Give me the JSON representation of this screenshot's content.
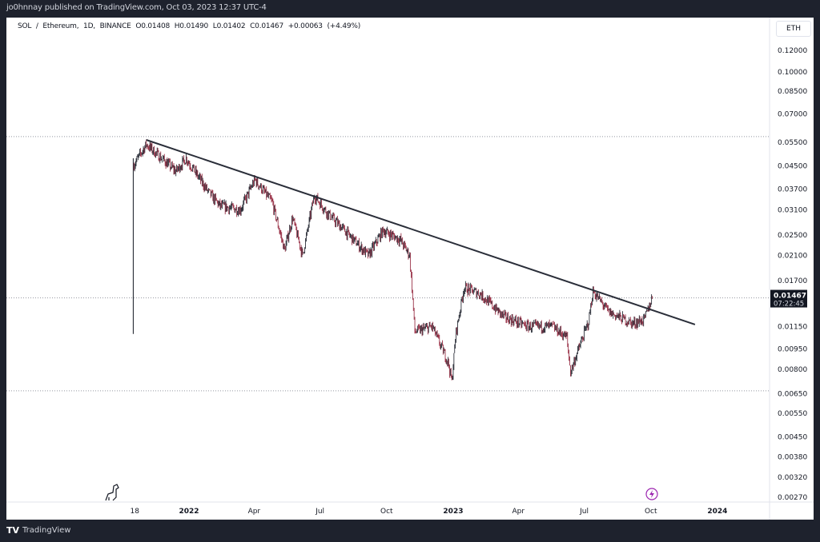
{
  "header": {
    "published": "jo0hnnay published on TradingView.com, Oct 03, 2023 12:37 UTC-4"
  },
  "legend": {
    "symbol": "SOL / Ethereum, 1D, BINANCE",
    "open": "O0.01408",
    "high": "H0.01490",
    "low": "L0.01402",
    "close": "C0.01467",
    "change": "+0.00063 (+4.49%)"
  },
  "price_axis": {
    "unit": "ETH",
    "current_price": "0.01467",
    "countdown": "07:22:45"
  },
  "footer": {
    "brand": "TradingView"
  },
  "colors": {
    "up": "#131722",
    "down": "#8e1b33",
    "trendline": "#2a2e39",
    "grid_dotted": "#9598a1",
    "current_label_bg": "#131722"
  },
  "chart_data": {
    "type": "candlestick",
    "scale": "log",
    "y_ticks": [
      "0.12000",
      "0.10000",
      "0.08500",
      "0.07000",
      "0.05500",
      "0.04500",
      "0.03700",
      "0.03100",
      "0.02500",
      "0.02100",
      "0.01700",
      "0.01150",
      "0.00950",
      "0.00800",
      "0.00650",
      "0.00550",
      "0.00450",
      "0.00380",
      "0.00320",
      "0.00270"
    ],
    "x_ticks": [
      {
        "label": "18",
        "date": "2021-10-18"
      },
      {
        "label": "2022",
        "date": "2022-01-01"
      },
      {
        "label": "Apr",
        "date": "2022-04-01"
      },
      {
        "label": "Jul",
        "date": "2022-07-01"
      },
      {
        "label": "Oct",
        "date": "2022-10-01"
      },
      {
        "label": "2023",
        "date": "2023-01-01"
      },
      {
        "label": "Apr",
        "date": "2023-04-01"
      },
      {
        "label": "Jul",
        "date": "2023-07-01"
      },
      {
        "label": "Oct",
        "date": "2023-10-01"
      },
      {
        "label": "2024",
        "date": "2024-01-01"
      }
    ],
    "price_path": [
      [
        "2021-10-16",
        0.045
      ],
      [
        "2021-11-03",
        0.054
      ],
      [
        "2021-12-14",
        0.043
      ],
      [
        "2021-12-28",
        0.048
      ],
      [
        "2022-01-28",
        0.036
      ],
      [
        "2022-02-13",
        0.032
      ],
      [
        "2022-03-13",
        0.031
      ],
      [
        "2022-04-02",
        0.04
      ],
      [
        "2022-04-26",
        0.033
      ],
      [
        "2022-05-13",
        0.022
      ],
      [
        "2022-05-24",
        0.029
      ],
      [
        "2022-06-07",
        0.021
      ],
      [
        "2022-06-23",
        0.035
      ],
      [
        "2022-07-12",
        0.03
      ],
      [
        "2022-08-04",
        0.026
      ],
      [
        "2022-09-06",
        0.021
      ],
      [
        "2022-09-26",
        0.026
      ],
      [
        "2022-10-20",
        0.024
      ],
      [
        "2022-11-02",
        0.021
      ],
      [
        "2022-11-09",
        0.011
      ],
      [
        "2022-12-03",
        0.0115
      ],
      [
        "2022-12-25",
        0.0085
      ],
      [
        "2022-12-30",
        0.0072
      ],
      [
        "2023-01-05",
        0.011
      ],
      [
        "2023-01-16",
        0.016
      ],
      [
        "2023-02-07",
        0.0152
      ],
      [
        "2023-03-12",
        0.0125
      ],
      [
        "2023-04-15",
        0.0115
      ],
      [
        "2023-05-18",
        0.0115
      ],
      [
        "2023-06-07",
        0.0105
      ],
      [
        "2023-06-12",
        0.0078
      ],
      [
        "2023-06-20",
        0.009
      ],
      [
        "2023-07-07",
        0.012
      ],
      [
        "2023-07-13",
        0.0155
      ],
      [
        "2023-08-04",
        0.013
      ],
      [
        "2023-09-06",
        0.0118
      ],
      [
        "2023-09-22",
        0.0122
      ],
      [
        "2023-10-03",
        0.01467
      ]
    ],
    "first_candle_range": [
      0.0108,
      0.048
    ],
    "trendline": [
      [
        "2021-11-03",
        0.0561
      ],
      [
        "2023-12-01",
        0.0117
      ]
    ],
    "horizontal_levels": [
      0.0577,
      0.01467,
      0.00666
    ]
  }
}
